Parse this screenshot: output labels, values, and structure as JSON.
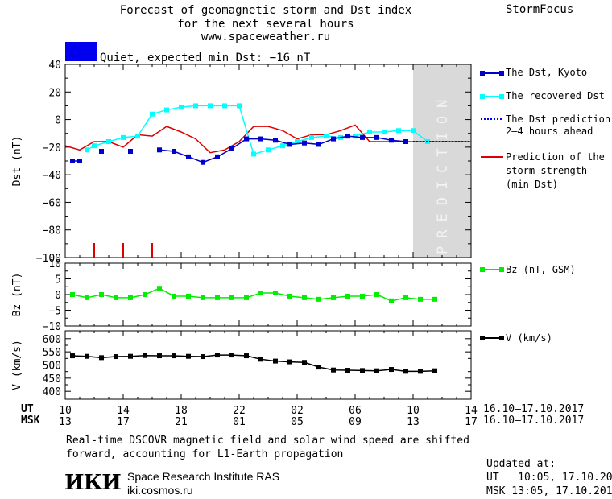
{
  "header": {
    "title_line1": "Forecast of geomagnetic storm and Dst index",
    "title_line2": "for the next several hours",
    "title_line3": "www.spaceweather.ru",
    "brand": "StormFocus"
  },
  "status": {
    "text": "Quiet, expected min Dst: −16 nT",
    "color": "#0000ee"
  },
  "prediction_label": "PREDICTION",
  "legend": {
    "dst_kyoto": "The Dst, Kyoto",
    "recovered": "The recovered Dst",
    "prediction_line1": "The Dst prediction",
    "prediction_line2": "2–4 hours ahead",
    "storm_line1": "Prediction of the",
    "storm_line2": "storm strength",
    "storm_line3": "(min Dst)",
    "bz": "Bz (nT, GSM)",
    "v": "V (km/s)"
  },
  "axis_labels": {
    "time_row1_prefix": "UT",
    "time_row2_prefix": "MSK",
    "date_range_ut": "16.10–17.10.2017",
    "date_range_msk": "16.10–17.10.2017"
  },
  "footer": {
    "note_line1": "Real-time DSCOVR magnetic field and solar wind speed are shifted",
    "note_line2": "forward, accounting for L1-Earth propagation",
    "logo": "ИКИ",
    "institute": "Space Research Institute RAS",
    "site": "iki.cosmos.ru",
    "updated_label": "Updated at:",
    "updated_ut": "UT   10:05, 17.10.2017",
    "updated_msk": "MSK 13:05, 17.10.2017"
  },
  "colors": {
    "dst_kyoto": "#0000cc",
    "recovered": "#00ffff",
    "prediction": "#0000ff",
    "storm": "#dd0000",
    "bz": "#00ee00",
    "v": "#000000",
    "prediction_band": "#d9d9d9"
  },
  "chart_data": [
    {
      "type": "line",
      "ylabel": "Dst (nT)",
      "ylim": [
        -100,
        40
      ],
      "yticks": [
        40,
        20,
        0,
        -20,
        -40,
        -60,
        -80,
        -100
      ],
      "xlim": [
        0,
        28
      ],
      "x_ticks_ut": [
        "10",
        "14",
        "18",
        "22",
        "02",
        "06",
        "10",
        "14"
      ],
      "x_ticks_msk": [
        "13",
        "17",
        "21",
        "01",
        "05",
        "09",
        "13",
        "17"
      ],
      "x_tick_hours": [
        0,
        4,
        8,
        12,
        16,
        20,
        24,
        28
      ],
      "prediction_start": 24,
      "series": [
        {
          "name": "The Dst, Kyoto",
          "style": "blue-squares",
          "segments": [
            [
              [
                0.5,
                -30
              ],
              [
                1,
                -30
              ]
            ],
            [
              [
                2.5,
                -23
              ]
            ],
            [
              [
                4.5,
                -23
              ]
            ],
            [
              [
                6.5,
                -22
              ],
              [
                7.5,
                -23
              ],
              [
                8.5,
                -27
              ],
              [
                9.5,
                -31
              ],
              [
                10.5,
                -27
              ],
              [
                11.5,
                -21
              ],
              [
                12.5,
                -14
              ],
              [
                13.5,
                -14
              ],
              [
                14.5,
                -15
              ],
              [
                15.5,
                -18
              ],
              [
                16.5,
                -17
              ],
              [
                17.5,
                -18
              ],
              [
                18.5,
                -14
              ],
              [
                19.5,
                -12
              ],
              [
                20.5,
                -13
              ],
              [
                21.5,
                -13
              ],
              [
                22.5,
                -15
              ],
              [
                23.5,
                -16
              ]
            ]
          ]
        },
        {
          "name": "The recovered Dst",
          "style": "cyan-squares",
          "segments": [
            [
              [
                1.5,
                -22
              ],
              [
                2,
                -19
              ],
              [
                3,
                -16
              ],
              [
                4,
                -13
              ],
              [
                5,
                -12
              ],
              [
                6,
                4
              ],
              [
                7,
                7
              ],
              [
                8,
                9
              ],
              [
                9,
                10
              ],
              [
                10,
                10
              ],
              [
                11,
                10
              ],
              [
                12,
                10
              ],
              [
                13,
                -25
              ],
              [
                14,
                -22
              ],
              [
                15,
                -19
              ],
              [
                16,
                -16
              ],
              [
                17,
                -13
              ],
              [
                18,
                -12
              ],
              [
                19,
                -13
              ],
              [
                20,
                -12
              ],
              [
                21,
                -9
              ],
              [
                22,
                -9
              ],
              [
                23,
                -8
              ],
              [
                24,
                -8
              ],
              [
                25,
                -16
              ]
            ]
          ]
        },
        {
          "name": "The Dst prediction 2–4 hours ahead",
          "style": "blue-dotted",
          "segments": [
            [
              [
                24,
                -16
              ],
              [
                28,
                -16
              ]
            ]
          ]
        },
        {
          "name": "Prediction of the storm strength (min Dst)",
          "style": "red-line",
          "segments": [
            [
              [
                0,
                -19
              ],
              [
                1,
                -22
              ],
              [
                2,
                -16
              ],
              [
                3,
                -16
              ],
              [
                4,
                -20
              ],
              [
                5,
                -11
              ],
              [
                6,
                -12
              ],
              [
                7,
                -5
              ],
              [
                8,
                -9
              ],
              [
                9,
                -14
              ],
              [
                10,
                -24
              ],
              [
                11,
                -22
              ],
              [
                12,
                -16
              ],
              [
                13,
                -5
              ],
              [
                14,
                -5
              ],
              [
                15,
                -8
              ],
              [
                16,
                -14
              ],
              [
                17,
                -11
              ],
              [
                18,
                -11
              ],
              [
                19,
                -8
              ],
              [
                20,
                -4
              ],
              [
                21,
                -16
              ],
              [
                24,
                -16
              ],
              [
                28,
                -16
              ]
            ]
          ]
        }
      ],
      "storm_marks": [
        2,
        4,
        6
      ]
    },
    {
      "type": "line",
      "ylabel": "Bz (nT)",
      "ylim": [
        -10,
        10
      ],
      "yticks": [
        10,
        5,
        0,
        -5,
        -10
      ],
      "series": [
        {
          "name": "Bz (nT, GSM)",
          "style": "green-squares",
          "points": [
            [
              0.5,
              0
            ],
            [
              1.5,
              -1
            ],
            [
              2.5,
              0
            ],
            [
              3.5,
              -1
            ],
            [
              4.5,
              -1
            ],
            [
              5.5,
              0
            ],
            [
              6.5,
              2
            ],
            [
              7.5,
              -0.5
            ],
            [
              8.5,
              -0.5
            ],
            [
              9.5,
              -1
            ],
            [
              10.5,
              -1
            ],
            [
              11.5,
              -1
            ],
            [
              12.5,
              -1
            ],
            [
              13.5,
              0.5
            ],
            [
              14.5,
              0.5
            ],
            [
              15.5,
              -0.5
            ],
            [
              16.5,
              -1
            ],
            [
              17.5,
              -1.5
            ],
            [
              18.5,
              -1
            ],
            [
              19.5,
              -0.5
            ],
            [
              20.5,
              -0.5
            ],
            [
              21.5,
              0
            ],
            [
              22.5,
              -2
            ],
            [
              23.5,
              -1
            ],
            [
              24.5,
              -1.5
            ],
            [
              25.5,
              -1.5
            ]
          ]
        }
      ]
    },
    {
      "type": "line",
      "ylabel": "V (km/s)",
      "ylim": [
        370,
        630
      ],
      "yticks": [
        600,
        550,
        500,
        450,
        400
      ],
      "series": [
        {
          "name": "V (km/s)",
          "style": "black-squares",
          "points": [
            [
              0.5,
              535
            ],
            [
              1.5,
              533
            ],
            [
              2.5,
              528
            ],
            [
              3.5,
              532
            ],
            [
              4.5,
              533
            ],
            [
              5.5,
              536
            ],
            [
              6.5,
              535
            ],
            [
              7.5,
              535
            ],
            [
              8.5,
              533
            ],
            [
              9.5,
              532
            ],
            [
              10.5,
              538
            ],
            [
              11.5,
              538
            ],
            [
              12.5,
              535
            ],
            [
              13.5,
              522
            ],
            [
              14.5,
              515
            ],
            [
              15.5,
              512
            ],
            [
              16.5,
              510
            ],
            [
              17.5,
              492
            ],
            [
              18.5,
              481
            ],
            [
              19.5,
              480
            ],
            [
              20.5,
              479
            ],
            [
              21.5,
              478
            ],
            [
              22.5,
              483
            ],
            [
              23.5,
              476
            ],
            [
              24.5,
              476
            ],
            [
              25.5,
              478
            ]
          ]
        }
      ]
    }
  ]
}
